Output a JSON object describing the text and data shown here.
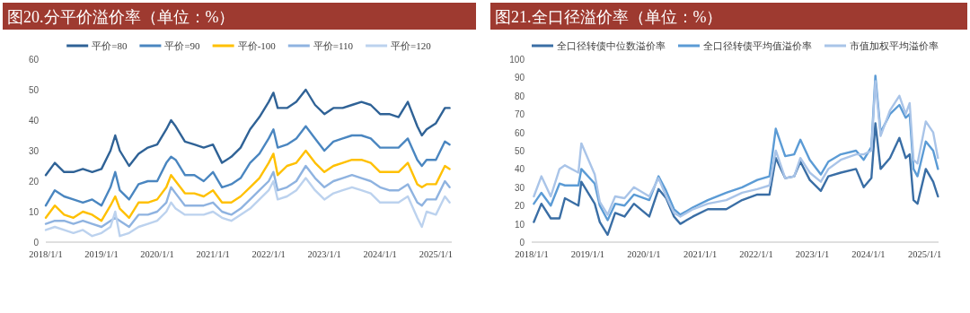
{
  "chart_data": [
    {
      "type": "line",
      "title": "图20.分平价溢价率（单位：%）",
      "legend": "top",
      "xlim": [
        "2018-01-01",
        "2025-04-15"
      ],
      "ylim": [
        0,
        60
      ],
      "yticks": [
        0,
        10,
        20,
        30,
        40,
        50,
        60
      ],
      "xticks": [
        {
          "value": "2018-01-01",
          "label": "2018/1/1"
        },
        {
          "value": "2019-01-01",
          "label": "2019/1/1"
        },
        {
          "value": "2020-01-01",
          "label": "2020/1/1"
        },
        {
          "value": "2021-01-01",
          "label": "2021/1/1"
        },
        {
          "value": "2022-01-01",
          "label": "2022/1/1"
        },
        {
          "value": "2023-01-01",
          "label": "2023/1/1"
        },
        {
          "value": "2024-01-01",
          "label": "2024/1/1"
        },
        {
          "value": "2025-01-01",
          "label": "2025/1/1"
        }
      ],
      "x": [
        "2018-01",
        "2018-03",
        "2018-05",
        "2018-07",
        "2018-09",
        "2018-11",
        "2019-01",
        "2019-03",
        "2019-04",
        "2019-05",
        "2019-07",
        "2019-09",
        "2019-11",
        "2020-01",
        "2020-03",
        "2020-04",
        "2020-05",
        "2020-07",
        "2020-09",
        "2020-11",
        "2021-01",
        "2021-03",
        "2021-05",
        "2021-07",
        "2021-09",
        "2021-11",
        "2022-01",
        "2022-02",
        "2022-03",
        "2022-05",
        "2022-07",
        "2022-09",
        "2022-11",
        "2023-01",
        "2023-03",
        "2023-05",
        "2023-07",
        "2023-09",
        "2023-11",
        "2024-01",
        "2024-03",
        "2024-05",
        "2024-07",
        "2024-09",
        "2024-10",
        "2024-11",
        "2025-01",
        "2025-03",
        "2025-04"
      ],
      "series": [
        {
          "name": "平价=80",
          "color": "#2f6296",
          "values": [
            22,
            26,
            23,
            23,
            24,
            23,
            24,
            30,
            35,
            30,
            25,
            29,
            31,
            32,
            37,
            40,
            38,
            33,
            32,
            31,
            32,
            26,
            28,
            31,
            37,
            41,
            46,
            49,
            44,
            44,
            46,
            50,
            45,
            42,
            44,
            44,
            45,
            46,
            45,
            42,
            42,
            41,
            46,
            38,
            35,
            37,
            39,
            44,
            44
          ]
        },
        {
          "name": "平价=90",
          "color": "#4a86c0",
          "values": [
            12,
            17,
            15,
            14,
            13,
            14,
            12,
            18,
            23,
            17,
            14,
            19,
            20,
            20,
            26,
            28,
            27,
            22,
            22,
            20,
            23,
            18,
            19,
            21,
            26,
            29,
            34,
            37,
            31,
            32,
            34,
            38,
            34,
            30,
            33,
            34,
            35,
            35,
            34,
            31,
            31,
            31,
            34,
            27,
            25,
            27,
            27,
            33,
            32
          ]
        },
        {
          "name": "平价-100",
          "color": "#ffc000",
          "values": [
            8,
            12,
            9,
            8,
            10,
            9,
            7,
            12,
            15,
            11,
            8,
            13,
            13,
            14,
            18,
            22,
            20,
            16,
            16,
            15,
            17,
            13,
            13,
            15,
            18,
            21,
            26,
            29,
            22,
            25,
            26,
            30,
            26,
            23,
            25,
            26,
            27,
            27,
            26,
            23,
            23,
            23,
            26,
            19,
            18,
            19,
            19,
            25,
            24
          ]
        },
        {
          "name": "平价=110",
          "color": "#8fb3e0",
          "values": [
            6,
            7,
            7,
            6,
            7,
            6,
            5,
            7,
            8,
            7,
            5,
            9,
            9,
            10,
            13,
            18,
            16,
            12,
            12,
            12,
            13,
            10,
            9,
            11,
            14,
            17,
            20,
            23,
            17,
            18,
            20,
            25,
            21,
            18,
            20,
            21,
            22,
            21,
            20,
            18,
            17,
            17,
            19,
            13,
            12,
            14,
            14,
            20,
            18
          ]
        },
        {
          "name": "平价=120",
          "color": "#bcd2ee",
          "values": [
            4,
            5,
            4,
            3,
            4,
            2,
            3,
            5,
            10,
            2,
            3,
            5,
            6,
            7,
            10,
            13,
            11,
            9,
            9,
            9,
            10,
            8,
            7,
            9,
            11,
            14,
            17,
            20,
            14,
            15,
            17,
            21,
            17,
            14,
            16,
            17,
            18,
            17,
            16,
            13,
            13,
            13,
            15,
            8,
            5,
            10,
            9,
            15,
            13
          ]
        }
      ]
    },
    {
      "type": "line",
      "title": "图21.全口径溢价率（单位：%）",
      "legend": "top",
      "xlim": [
        "2018-01-01",
        "2025-04-01"
      ],
      "ylim": [
        0,
        100
      ],
      "yticks": [
        0,
        10,
        20,
        30,
        40,
        50,
        60,
        70,
        80,
        90,
        100
      ],
      "xticks": [
        {
          "value": "2018-01-01",
          "label": "2018/1/1"
        },
        {
          "value": "2019-01-01",
          "label": "2019/1/1"
        },
        {
          "value": "2020-01-01",
          "label": "2020/1/1"
        },
        {
          "value": "2021-01-01",
          "label": "2021/1/1"
        },
        {
          "value": "2022-01-01",
          "label": "2022/1/1"
        },
        {
          "value": "2023-01-01",
          "label": "2023/1/1"
        },
        {
          "value": "2024-01-01",
          "label": "2024/1/1"
        },
        {
          "value": "2025-01-01",
          "label": "2025/1/1"
        }
      ],
      "x": [
        "2018-01-15",
        "2018-03-05",
        "2018-05-05",
        "2018-07-01",
        "2018-08-05",
        "2018-11-01",
        "2018-11-20",
        "2019-02-15",
        "2019-03-20",
        "2019-05-10",
        "2019-06-28",
        "2019-08-28",
        "2019-10-28",
        "2020-02-05",
        "2020-04-05",
        "2020-05-25",
        "2020-07-15",
        "2020-08-25",
        "2020-11-15",
        "2021-02-20",
        "2021-06-20",
        "2021-10-01",
        "2022-01-08",
        "2022-03-28",
        "2022-05-08",
        "2022-07-08",
        "2022-09-05",
        "2022-10-15",
        "2022-12-15",
        "2023-02-25",
        "2023-04-15",
        "2023-07-05",
        "2023-10-12",
        "2023-12-01",
        "2024-01-20",
        "2024-02-15",
        "2024-03-20",
        "2024-05-20",
        "2024-07-20",
        "2024-08-30",
        "2024-09-25",
        "2024-10-20",
        "2024-11-15",
        "2025-01-08",
        "2025-02-25",
        "2025-03-28"
      ],
      "series": [
        {
          "name": "全口径转债中位数溢价率",
          "color": "#3a6ea5",
          "values": [
            11,
            21,
            13,
            13,
            24,
            20,
            33,
            21,
            11,
            4,
            16,
            14,
            21,
            14,
            29,
            24,
            14,
            10,
            14,
            18,
            18,
            23,
            26,
            26,
            46,
            35,
            36,
            44,
            34,
            28,
            36,
            38,
            40,
            30,
            35,
            65,
            40,
            46,
            57,
            46,
            48,
            23,
            21,
            40,
            33,
            25
          ]
        },
        {
          "name": "全口径转债平均值溢价率",
          "color": "#5b9bd5",
          "values": [
            21,
            27,
            20,
            32,
            31,
            31,
            40,
            32,
            20,
            12,
            21,
            20,
            26,
            23,
            36,
            28,
            18,
            15,
            19,
            23,
            27,
            30,
            34,
            36,
            62,
            47,
            48,
            56,
            45,
            37,
            44,
            48,
            50,
            45,
            52,
            91,
            60,
            70,
            75,
            68,
            70,
            40,
            36,
            55,
            50,
            40
          ]
        },
        {
          "name": "市值加权平均溢价率",
          "color": "#a9c4e8",
          "values": [
            25,
            36,
            25,
            40,
            42,
            38,
            54,
            37,
            22,
            15,
            25,
            24,
            30,
            25,
            35,
            25,
            16,
            14,
            18,
            21,
            23,
            27,
            29,
            31,
            50,
            35,
            36,
            46,
            38,
            33,
            40,
            45,
            48,
            48,
            50,
            88,
            58,
            72,
            80,
            70,
            76,
            45,
            43,
            66,
            60,
            46
          ]
        }
      ]
    }
  ]
}
